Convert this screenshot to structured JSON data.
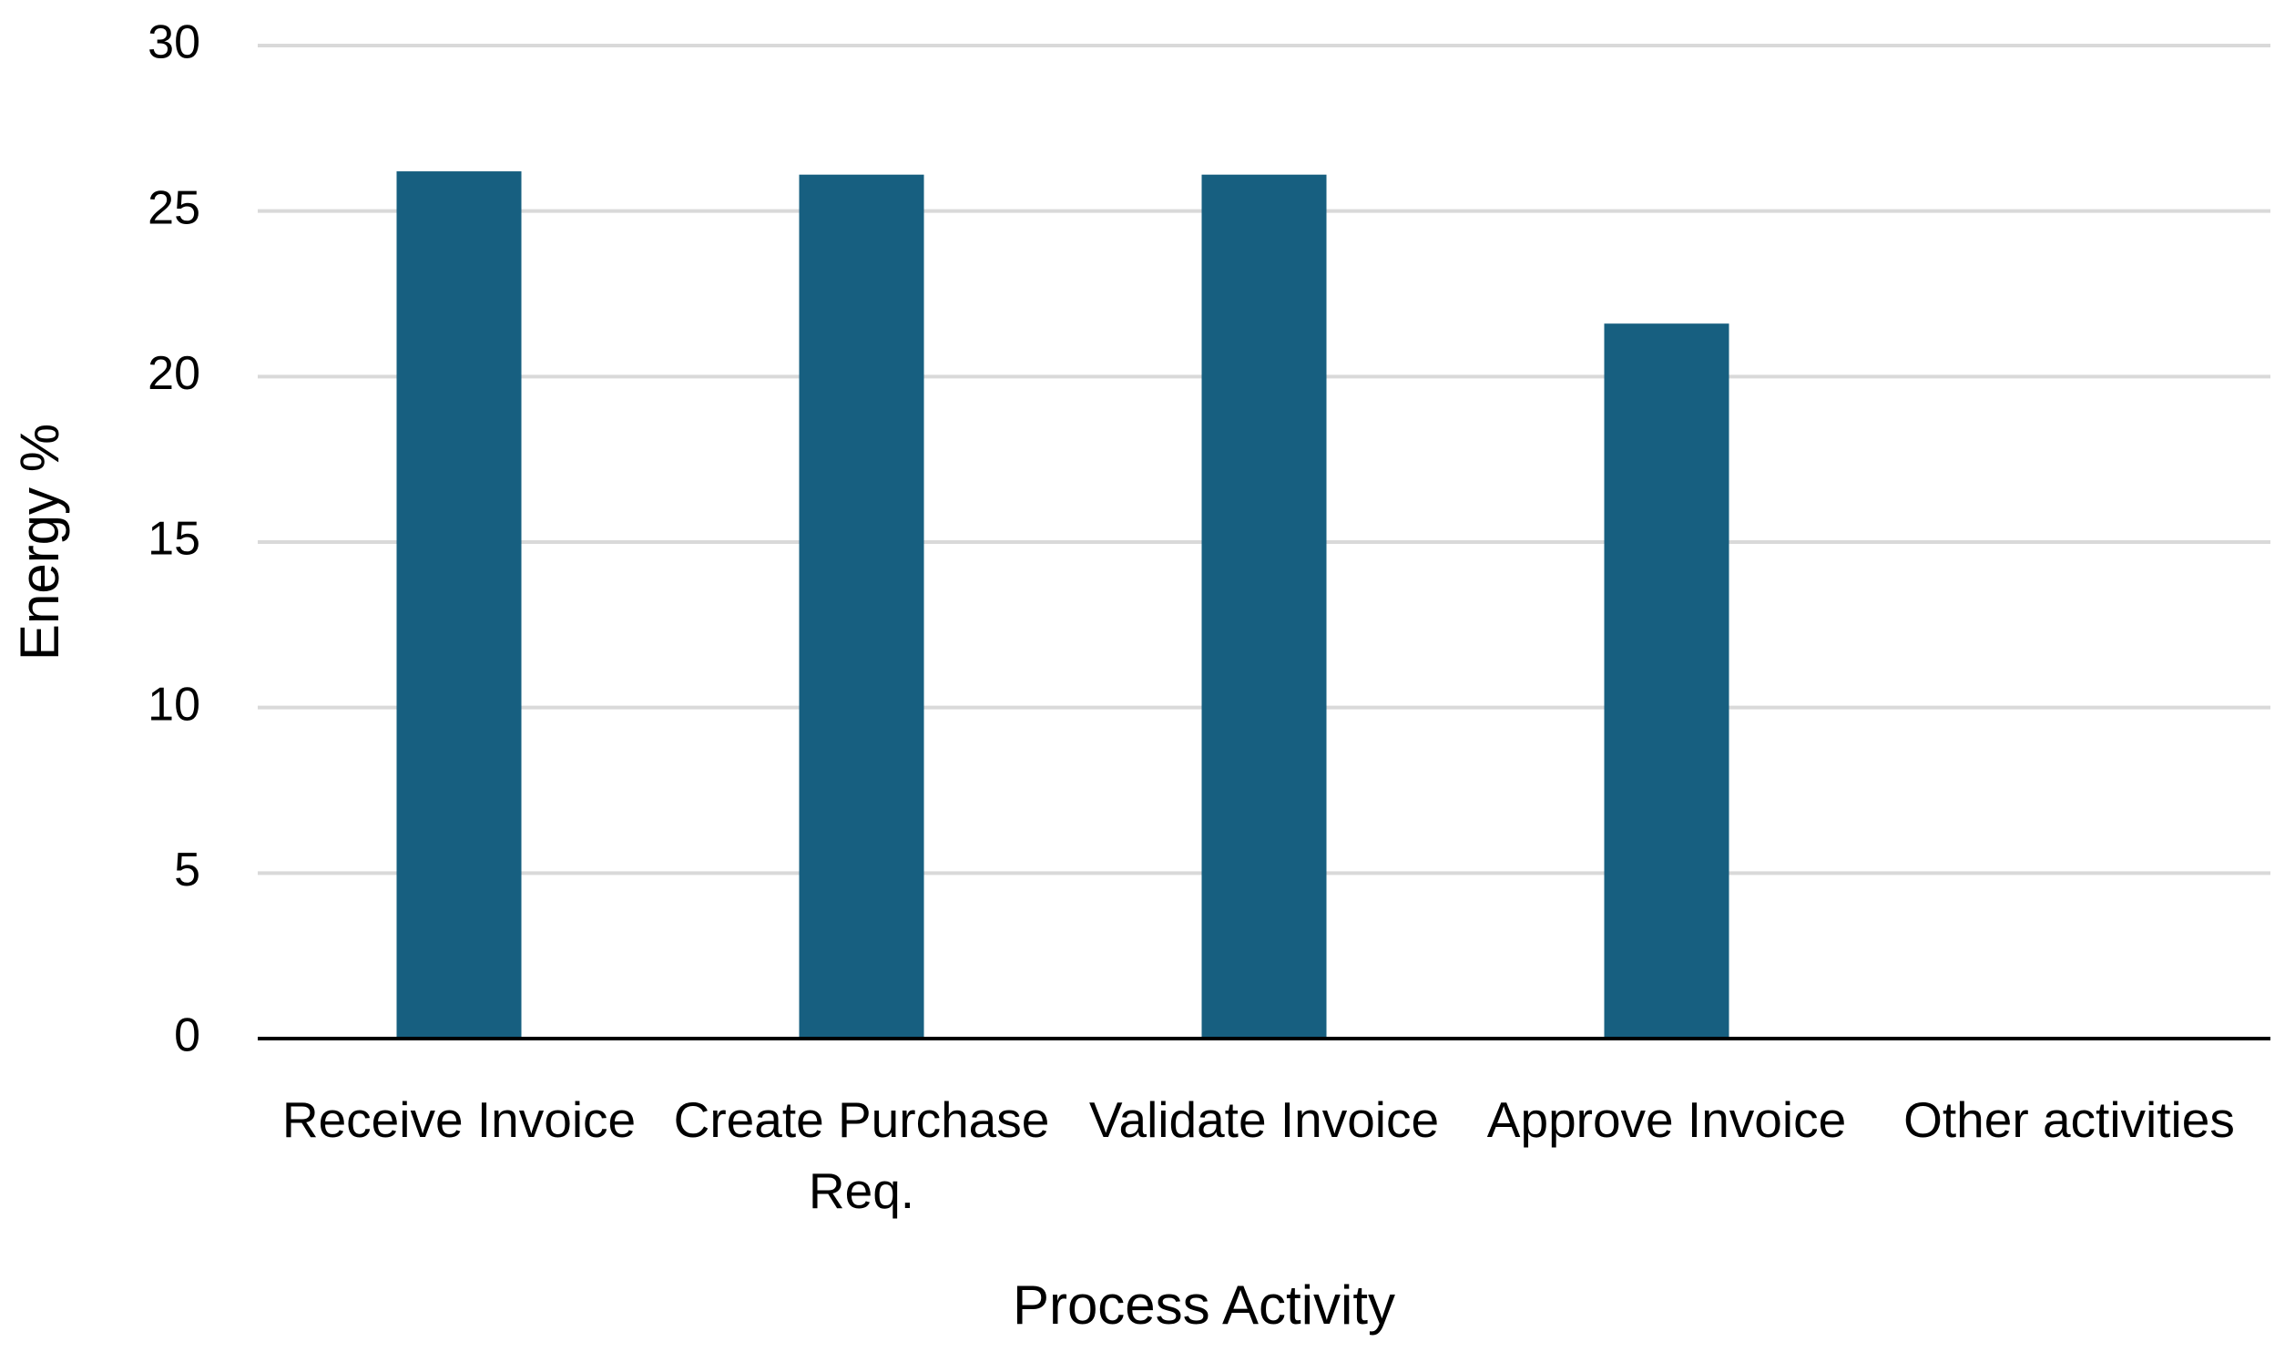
{
  "chart_data": {
    "type": "bar",
    "x_label": "Process Activity",
    "y_label": "Energy %",
    "categories": [
      "Receive Invoice",
      "Create Purchase Req.",
      "Validate Invoice",
      "Approve Invoice",
      "Other activities"
    ],
    "values": [
      26.2,
      26.1,
      26.1,
      21.6,
      0
    ],
    "color": "#175f80",
    "ylim": [
      0,
      30
    ],
    "yticks": [
      0,
      5,
      10,
      15,
      20,
      25,
      30
    ],
    "grid": true
  }
}
